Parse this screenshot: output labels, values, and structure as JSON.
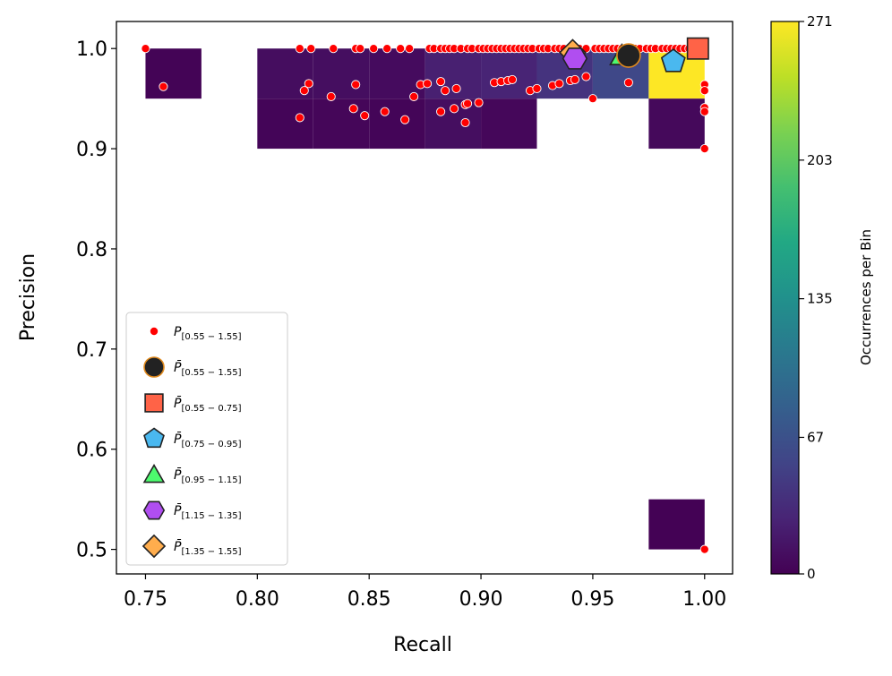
{
  "chart_data": {
    "type": "scatter",
    "xlabel": "Recall",
    "ylabel": "Precision",
    "xlim": [
      0.737,
      1.0125
    ],
    "ylim": [
      0.4755,
      1.027
    ],
    "x_ticks": [
      0.75,
      0.8,
      0.85,
      0.9,
      0.95,
      1.0
    ],
    "x_tick_labels": [
      "0.75",
      "0.80",
      "0.85",
      "0.90",
      "0.95",
      "1.00"
    ],
    "y_ticks": [
      0.5,
      0.6,
      0.7,
      0.8,
      0.9,
      1.0
    ],
    "y_tick_labels": [
      "0.5",
      "0.6",
      "0.7",
      "0.8",
      "0.9",
      "1.0"
    ],
    "histogram": {
      "bin_width_x": 0.025,
      "bin_height_y": 0.05,
      "cells": [
        {
          "x0": 0.75,
          "y0": 0.95,
          "count": 2
        },
        {
          "x0": 0.8,
          "y0": 0.95,
          "count": 9
        },
        {
          "x0": 0.825,
          "y0": 0.95,
          "count": 10
        },
        {
          "x0": 0.85,
          "y0": 0.95,
          "count": 8
        },
        {
          "x0": 0.875,
          "y0": 0.95,
          "count": 24
        },
        {
          "x0": 0.9,
          "y0": 0.95,
          "count": 27
        },
        {
          "x0": 0.925,
          "y0": 0.95,
          "count": 40
        },
        {
          "x0": 0.95,
          "y0": 0.95,
          "count": 58
        },
        {
          "x0": 0.975,
          "y0": 0.95,
          "count": 271
        },
        {
          "x0": 0.8,
          "y0": 0.9,
          "count": 3
        },
        {
          "x0": 0.825,
          "y0": 0.9,
          "count": 4
        },
        {
          "x0": 0.85,
          "y0": 0.9,
          "count": 3
        },
        {
          "x0": 0.875,
          "y0": 0.9,
          "count": 10
        },
        {
          "x0": 0.9,
          "y0": 0.9,
          "count": 5
        },
        {
          "x0": 0.975,
          "y0": 0.9,
          "count": 6
        },
        {
          "x0": 0.975,
          "y0": 0.5,
          "count": 1
        }
      ]
    },
    "colorbar": {
      "label": "Occurrences per Bin",
      "min": 0,
      "max": 271,
      "ticks": [
        0,
        67,
        135,
        203,
        271
      ],
      "tick_labels": [
        "0",
        "67",
        "135",
        "203",
        "271"
      ],
      "colors": [
        "#440154",
        "#3b528b",
        "#21918c",
        "#5ec962",
        "#fde725"
      ]
    },
    "points": {
      "label_main": "P",
      "label_sub": "[0.55 − 1.55]",
      "color": "#ff0000",
      "x": [
        0.75,
        0.819,
        0.824,
        0.834,
        0.844,
        0.846,
        0.852,
        0.858,
        0.864,
        0.868,
        0.877,
        0.879,
        0.882,
        0.884,
        0.886,
        0.888,
        0.891,
        0.894,
        0.896,
        0.899,
        0.901,
        0.903,
        0.905,
        0.907,
        0.909,
        0.911,
        0.913,
        0.915,
        0.917,
        0.919,
        0.921,
        0.923,
        0.926,
        0.928,
        0.93,
        0.933,
        0.935,
        0.937,
        0.94,
        0.944,
        0.947,
        0.951,
        0.953,
        0.955,
        0.957,
        0.959,
        0.961,
        0.963,
        0.965,
        0.967,
        0.969,
        0.971,
        0.974,
        0.976,
        0.978,
        0.981,
        0.983,
        0.985,
        0.987,
        0.989,
        0.991,
        0.993,
        0.995,
        0.997,
        0.998,
        0.758,
        0.823,
        0.821,
        0.833,
        0.844,
        0.873,
        0.876,
        0.882,
        0.884,
        0.889,
        0.893,
        0.906,
        0.909,
        0.912,
        0.914,
        0.922,
        0.925,
        0.932,
        0.935,
        0.94,
        0.942,
        0.947,
        0.966,
        1.0,
        1.0,
        0.819,
        0.843,
        0.848,
        0.857,
        0.866,
        0.87,
        0.882,
        0.888,
        0.893,
        0.894,
        0.899,
        0.95,
        1.0,
        1.0,
        1.0,
        1.0
      ],
      "y": [
        1.0,
        1.0,
        1.0,
        1.0,
        1.0,
        1.0,
        1.0,
        1.0,
        1.0,
        1.0,
        1.0,
        1.0,
        1.0,
        1.0,
        1.0,
        1.0,
        1.0,
        1.0,
        1.0,
        1.0,
        1.0,
        1.0,
        1.0,
        1.0,
        1.0,
        1.0,
        1.0,
        1.0,
        1.0,
        1.0,
        1.0,
        1.0,
        1.0,
        1.0,
        1.0,
        1.0,
        1.0,
        1.0,
        1.0,
        1.0,
        1.0,
        1.0,
        1.0,
        1.0,
        1.0,
        1.0,
        1.0,
        1.0,
        1.0,
        1.0,
        1.0,
        1.0,
        1.0,
        1.0,
        1.0,
        1.0,
        1.0,
        1.0,
        1.0,
        1.0,
        1.0,
        1.0,
        1.0,
        1.0,
        1.0,
        0.962,
        0.965,
        0.958,
        0.952,
        0.964,
        0.964,
        0.965,
        0.967,
        0.958,
        0.96,
        0.944,
        0.966,
        0.967,
        0.968,
        0.969,
        0.958,
        0.96,
        0.963,
        0.965,
        0.968,
        0.969,
        0.972,
        0.966,
        0.964,
        0.958,
        0.931,
        0.94,
        0.933,
        0.937,
        0.929,
        0.952,
        0.937,
        0.94,
        0.926,
        0.945,
        0.946,
        0.95,
        0.941,
        0.937,
        0.9,
        0.5
      ]
    },
    "means": [
      {
        "label_main": "P̄",
        "label_sub": "[0.55 − 1.55]",
        "x": 0.966,
        "y": 0.993,
        "marker": "circle",
        "color": "#222222",
        "edge": "#e08a1e"
      },
      {
        "label_main": "P̄",
        "label_sub": "[0.55 − 0.75]",
        "x": 0.997,
        "y": 1.0,
        "marker": "square",
        "color": "#ff6347",
        "edge": "#222222"
      },
      {
        "label_main": "P̄",
        "label_sub": "[0.75 − 0.95]",
        "x": 0.986,
        "y": 0.987,
        "marker": "pentagon",
        "color": "#4ab8ef",
        "edge": "#222222"
      },
      {
        "label_main": "P̄",
        "label_sub": "[0.95 − 1.15]",
        "x": 0.963,
        "y": 0.993,
        "marker": "triangle",
        "color": "#4dfa6e",
        "edge": "#222222"
      },
      {
        "label_main": "P̄",
        "label_sub": "[1.15 − 1.35]",
        "x": 0.942,
        "y": 0.99,
        "marker": "hexagon",
        "color": "#b04ef0",
        "edge": "#222222"
      },
      {
        "label_main": "P̄",
        "label_sub": "[1.35 − 1.55]",
        "x": 0.941,
        "y": 0.996,
        "marker": "diamond",
        "color": "#ffad4d",
        "edge": "#222222"
      }
    ]
  }
}
